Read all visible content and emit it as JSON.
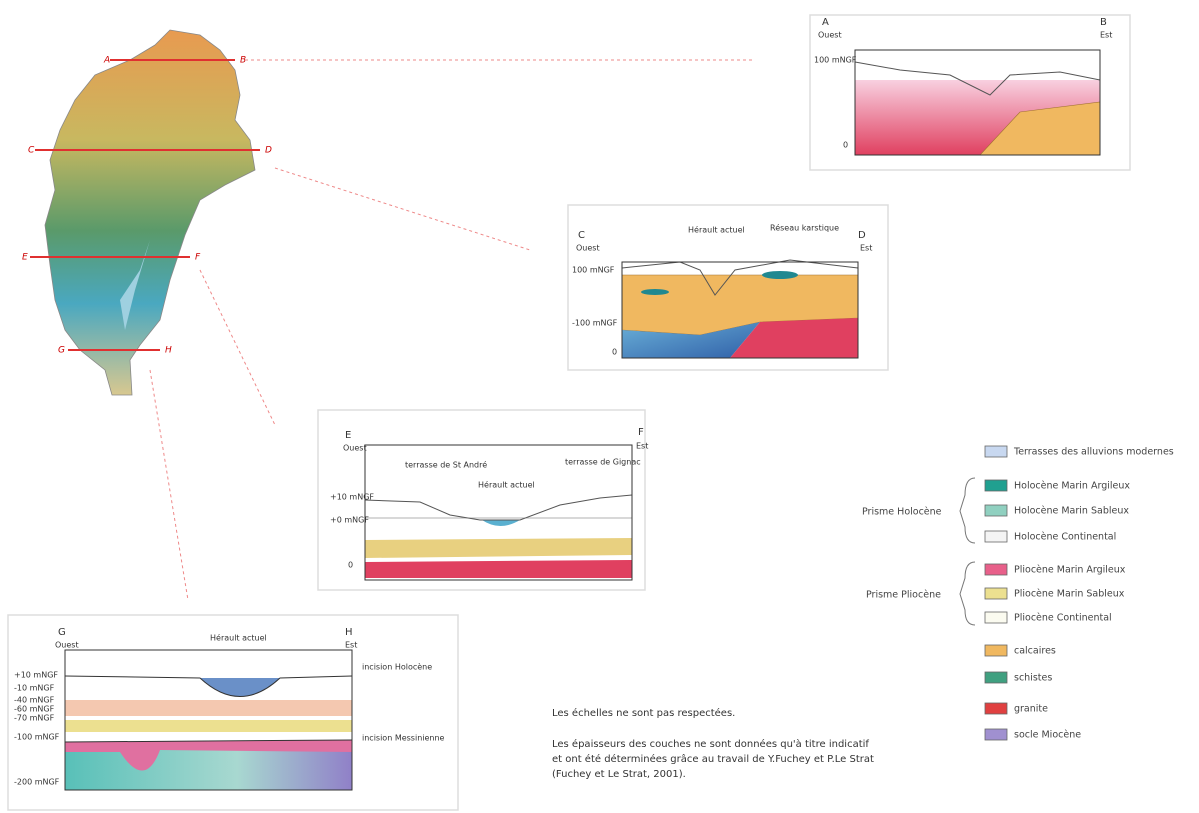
{
  "map": {
    "labels": [
      "A",
      "B",
      "C",
      "D",
      "E",
      "F",
      "G",
      "H"
    ]
  },
  "sections": [
    {
      "start": "A",
      "west": "Ouest",
      "end": "B",
      "east": "Est",
      "depth_labels": [
        "100 mNGF",
        "0"
      ]
    },
    {
      "start": "C",
      "west": "Ouest",
      "end": "D",
      "east": "Est",
      "annotations": [
        "Hérault actuel",
        "Réseau karstique"
      ],
      "depth_labels": [
        "100 mNGF",
        "-100 mNGF",
        "0"
      ]
    },
    {
      "start": "E",
      "west": "Ouest",
      "end": "F",
      "east": "Est",
      "annotations": [
        "terrasse de St André",
        "Hérault actuel",
        "terrasse de Gignac"
      ],
      "depth_labels": [
        "+10 mNGF",
        "+0 mNGF",
        "0"
      ]
    },
    {
      "start": "G",
      "west": "Ouest",
      "end": "H",
      "east": "Est",
      "annotations": [
        "Hérault actuel",
        "incision Holocène",
        "incision Messinienne"
      ],
      "depth_labels": [
        "+10 mNGF",
        "-10 mNGF",
        "-40 mNGF",
        "-60 mNGF",
        "-70 mNGF",
        "-100 mNGF",
        "-200 mNGF"
      ]
    }
  ],
  "legend": {
    "groups": [
      "Prisme Holocène",
      "Prisme Pliocène"
    ],
    "items": [
      "Terrasses des alluvions modernes",
      "Holocène Marin Argileux",
      "Holocène Marin Sableux",
      "Holocène Continental",
      "Pliocène Marin Argileux",
      "Pliocène Marin Sableux",
      "Pliocène Continental",
      "calcaires",
      "schistes",
      "granite",
      "socle Miocène"
    ]
  },
  "notes": [
    "Les échelles ne sont pas respectées.",
    "Les épaisseurs des couches ne sont données qu'à titre indicatif",
    "et ont été déterminées grâce au travail de Y.Fuchey et P.Le Strat",
    "(Fuchey et Le Strat, 2001)."
  ]
}
